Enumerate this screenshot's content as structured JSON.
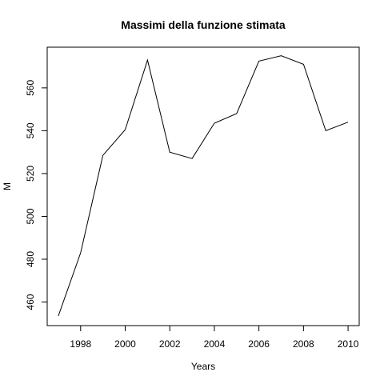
{
  "chart_data": {
    "type": "line",
    "title": "Massimi della funzione stimata",
    "xlabel": "Years",
    "ylabel": "M",
    "x": [
      1997,
      1998,
      1999,
      2000,
      2001,
      2002,
      2003,
      2004,
      2005,
      2006,
      2007,
      2008,
      2009,
      2010
    ],
    "series": [
      {
        "values": [
          453.5,
          483,
          528.5,
          540.5,
          573,
          530,
          527,
          543.5,
          548,
          572.5,
          575,
          571,
          540,
          544
        ]
      }
    ],
    "xlim": [
      1996.5,
      2010.5
    ],
    "ylim": [
      449,
      579
    ],
    "xticks": [
      {
        "value": 1998,
        "label": "1998"
      },
      {
        "value": 2000,
        "label": "2000"
      },
      {
        "value": 2002,
        "label": "2002"
      },
      {
        "value": 2004,
        "label": "2004"
      },
      {
        "value": 2006,
        "label": "2006"
      },
      {
        "value": 2008,
        "label": "2008"
      },
      {
        "value": 2010,
        "label": "2010"
      }
    ],
    "yticks": [
      {
        "value": 460,
        "label": "460"
      },
      {
        "value": 480,
        "label": "480"
      },
      {
        "value": 500,
        "label": "500"
      },
      {
        "value": 520,
        "label": "520"
      },
      {
        "value": 540,
        "label": "540"
      },
      {
        "value": 560,
        "label": "560"
      }
    ],
    "grid": false,
    "colors": {
      "line": "#000000",
      "axis": "#000000",
      "background": "#ffffff"
    }
  }
}
